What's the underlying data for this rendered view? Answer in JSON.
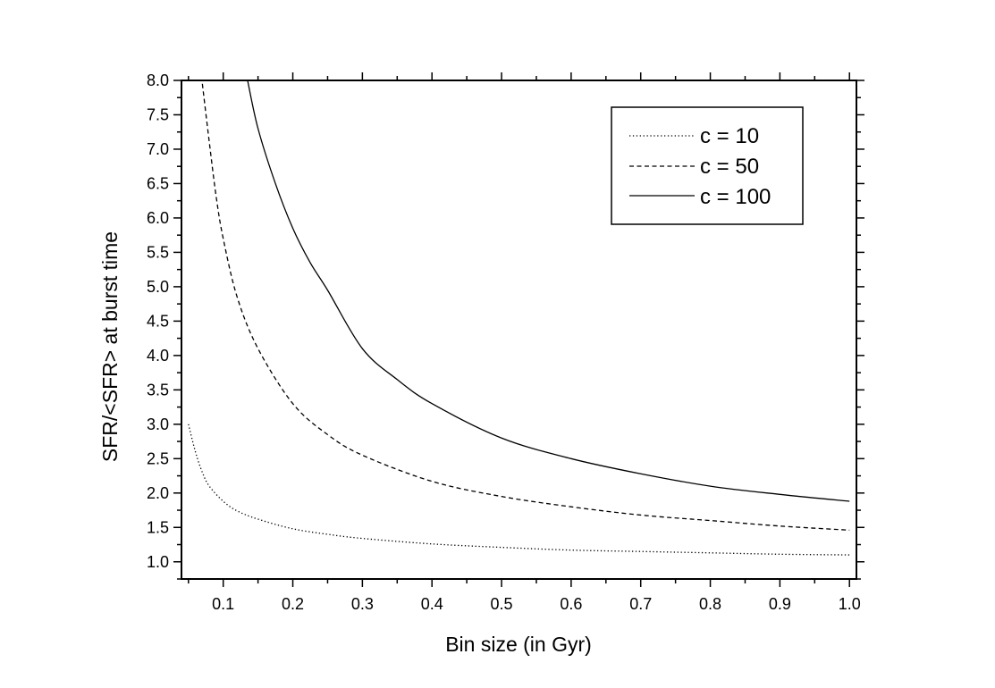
{
  "chart_data": {
    "type": "line",
    "title": "",
    "xlabel": "Bin size (in Gyr)",
    "ylabel": "SFR/<SFR> at burst time",
    "xlim": [
      0.04,
      1.01
    ],
    "ylim": [
      0.75,
      8.0
    ],
    "xticks": [
      "0.1",
      "0.2",
      "0.3",
      "0.4",
      "0.5",
      "0.6",
      "0.7",
      "0.8",
      "0.9",
      "1.0"
    ],
    "yticks": [
      "1.0",
      "1.5",
      "2.0",
      "2.5",
      "3.0",
      "3.5",
      "4.0",
      "4.5",
      "5.0",
      "5.5",
      "6.0",
      "6.5",
      "7.0",
      "7.5",
      "8.0"
    ],
    "grid": false,
    "legend_position": "top-right",
    "series": [
      {
        "name": "c = 10",
        "style": "dotted",
        "x": [
          0.05,
          0.06,
          0.07,
          0.08,
          0.1,
          0.12,
          0.15,
          0.2,
          0.25,
          0.3,
          0.4,
          0.5,
          0.6,
          0.7,
          0.8,
          0.9,
          1.0
        ],
        "y": [
          3.0,
          2.6,
          2.3,
          2.1,
          1.88,
          1.74,
          1.62,
          1.48,
          1.4,
          1.34,
          1.26,
          1.21,
          1.17,
          1.15,
          1.13,
          1.11,
          1.1
        ]
      },
      {
        "name": "c = 50",
        "style": "dashed",
        "x": [
          0.07,
          0.08,
          0.09,
          0.1,
          0.12,
          0.15,
          0.2,
          0.25,
          0.3,
          0.4,
          0.5,
          0.6,
          0.7,
          0.8,
          0.9,
          1.0
        ],
        "y": [
          7.95,
          7.1,
          6.3,
          5.7,
          4.85,
          4.1,
          3.3,
          2.85,
          2.55,
          2.17,
          1.95,
          1.8,
          1.68,
          1.6,
          1.52,
          1.46
        ]
      },
      {
        "name": "c = 100",
        "style": "solid",
        "x": [
          0.135,
          0.15,
          0.175,
          0.2,
          0.225,
          0.25,
          0.3,
          0.35,
          0.4,
          0.5,
          0.6,
          0.7,
          0.8,
          0.9,
          1.0
        ],
        "y": [
          8.0,
          7.3,
          6.5,
          5.85,
          5.35,
          4.95,
          4.1,
          3.65,
          3.3,
          2.8,
          2.5,
          2.28,
          2.1,
          1.98,
          1.88
        ]
      }
    ]
  }
}
